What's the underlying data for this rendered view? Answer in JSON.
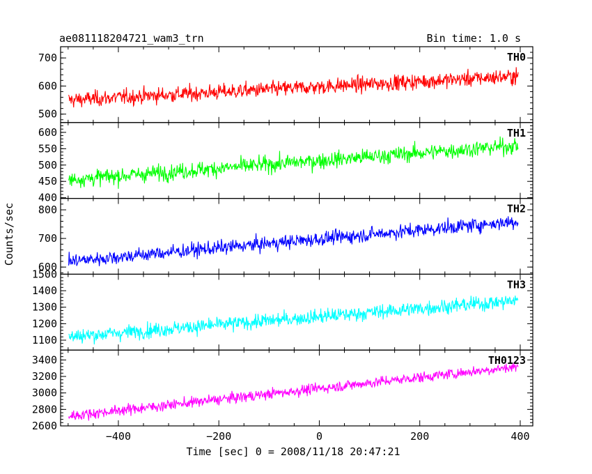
{
  "header": {
    "title": "ae081118204721_wam3_trn",
    "bin_time": "Bin time: 1.0 s"
  },
  "axes": {
    "ylabel": "Counts/sec",
    "xlabel": "Time [sec] 0 = 2008/11/18 20:47:21"
  },
  "chart_data": {
    "type": "line",
    "xlim": [
      -515,
      425
    ],
    "x_ticks": [
      -400,
      -200,
      0,
      200,
      400
    ],
    "x_tick_labels": [
      "−400",
      "−200",
      "0",
      "200",
      "400"
    ],
    "x_start": -499,
    "x_end": 396,
    "bin_time": 1.0,
    "panels": [
      {
        "name": "TH0",
        "color": "#ff0000",
        "ylim": [
          470,
          740
        ],
        "yticks": [
          500,
          600,
          700
        ],
        "ytick_labels": [
          "500",
          "600",
          "700"
        ],
        "trend_start": 550,
        "trend_end": 635,
        "noise": 28
      },
      {
        "name": "TH1",
        "color": "#00ff00",
        "ylim": [
          398,
          630
        ],
        "yticks": [
          400,
          450,
          500,
          550,
          600
        ],
        "ytick_labels": [
          "400",
          "450",
          "500",
          "550",
          "600"
        ],
        "trend_start": 455,
        "trend_end": 560,
        "noise": 25
      },
      {
        "name": "TH2",
        "color": "#0000ff",
        "ylim": [
          575,
          840
        ],
        "yticks": [
          600,
          700,
          800
        ],
        "ytick_labels": [
          "600",
          "700",
          "800"
        ],
        "trend_start": 620,
        "trend_end": 760,
        "noise": 25
      },
      {
        "name": "TH3",
        "color": "#00ffff",
        "ylim": [
          1040,
          1500
        ],
        "yticks": [
          1100,
          1200,
          1300,
          1400,
          1500
        ],
        "ytick_labels": [
          "1100",
          "1200",
          "1300",
          "1400",
          "1500"
        ],
        "trend_start": 1120,
        "trend_end": 1340,
        "noise": 45
      },
      {
        "name": "TH0123",
        "color": "#ff00ff",
        "ylim": [
          2600,
          3520
        ],
        "yticks": [
          2600,
          2800,
          3000,
          3200,
          3400
        ],
        "ytick_labels": [
          "2600",
          "2800",
          "3000",
          "3200",
          "3400"
        ],
        "trend_start": 2720,
        "trend_end": 3320,
        "noise": 65
      }
    ]
  }
}
